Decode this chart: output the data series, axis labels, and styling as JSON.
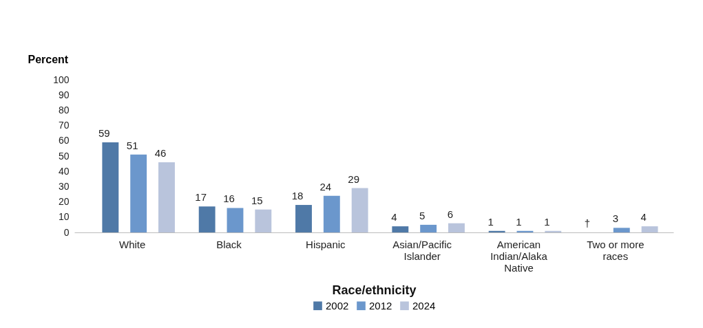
{
  "chart_data": {
    "type": "bar",
    "xlabel": "Race/ethnicity",
    "ylabel": "Percent",
    "categories": [
      "White",
      "Black",
      "Hispanic",
      "Asian/Pacific Islander",
      "American Indian/Alaka Native",
      "Two or more races"
    ],
    "series": [
      {
        "name": "2002",
        "color": "#4f79a7",
        "values": [
          59,
          17,
          18,
          4,
          1,
          null
        ],
        "value_labels": [
          "59",
          "17",
          "18",
          "4",
          "1",
          "†"
        ]
      },
      {
        "name": "2012",
        "color": "#6b97cc",
        "values": [
          51,
          16,
          24,
          5,
          1,
          3
        ],
        "value_labels": [
          "51",
          "16",
          "24",
          "5",
          "1",
          "3"
        ]
      },
      {
        "name": "2024",
        "color": "#b9c4dc",
        "values": [
          46,
          15,
          29,
          6,
          1,
          4
        ],
        "value_labels": [
          "46",
          "15",
          "29",
          "6",
          "1",
          "4"
        ]
      }
    ],
    "ylim": [
      0,
      100
    ],
    "yticks": [
      0,
      10,
      20,
      30,
      40,
      50,
      60,
      70,
      80,
      90,
      100
    ],
    "grid": false,
    "legend": "bottom"
  }
}
